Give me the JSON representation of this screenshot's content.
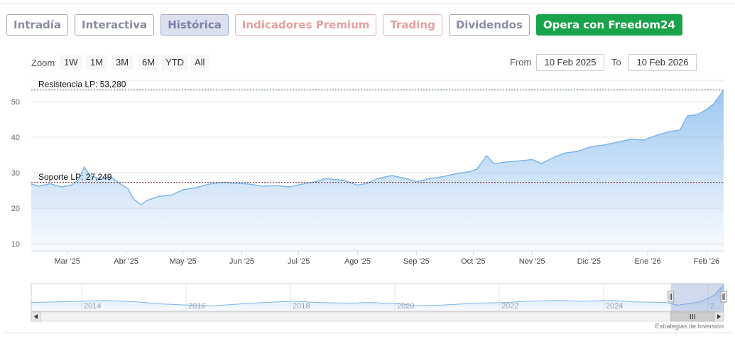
{
  "tabs": [
    {
      "label": "Intradía",
      "style": "grey"
    },
    {
      "label": "Interactiva",
      "style": "grey"
    },
    {
      "label": "Histórica",
      "style": "active"
    },
    {
      "label": "Indicadores Premium",
      "style": "red"
    },
    {
      "label": "Trading",
      "style": "red"
    },
    {
      "label": "Dividendos",
      "style": "grey"
    },
    {
      "label": "Opera con Freedom24",
      "style": "green"
    }
  ],
  "zoom": {
    "label": "Zoom",
    "buttons": [
      "1W",
      "1M",
      "3M",
      "6M",
      "YTD",
      "All"
    ]
  },
  "range": {
    "from_label": "From",
    "from_value": "10 Feb 2025",
    "to_label": "To",
    "to_value": "10 Feb 2026"
  },
  "credit": "Estrategias de Inversión",
  "colors": {
    "line": "#7cb5ec",
    "fill_top": "#7cb5ec",
    "resistance": "#2e5f2e",
    "support": "#6b1b1b",
    "green_button": "#19a34a"
  },
  "chart_data": {
    "type": "area",
    "title": "",
    "xlabel": "",
    "ylabel": "",
    "ylim": [
      8,
      56
    ],
    "yticks": [
      10,
      20,
      30,
      40,
      50
    ],
    "grid": true,
    "x_start": "2025-02-10",
    "x_end": "2026-02-10",
    "x_ticks": [
      {
        "label": "Mar '25",
        "date": "2025-03-01"
      },
      {
        "label": "Abr '25",
        "date": "2025-04-01"
      },
      {
        "label": "May '25",
        "date": "2025-05-01"
      },
      {
        "label": "Jun '25",
        "date": "2025-06-01"
      },
      {
        "label": "Jul '25",
        "date": "2025-07-01"
      },
      {
        "label": "Ago '25",
        "date": "2025-08-01"
      },
      {
        "label": "Sep '25",
        "date": "2025-09-01"
      },
      {
        "label": "Oct '25",
        "date": "2025-10-01"
      },
      {
        "label": "Nov '25",
        "date": "2025-11-01"
      },
      {
        "label": "Dic '25",
        "date": "2025-12-01"
      },
      {
        "label": "Ene '26",
        "date": "2026-01-01"
      },
      {
        "label": "Feb '26",
        "date": "2026-02-01"
      }
    ],
    "series": [
      {
        "points": [
          [
            "2025-02-10",
            26.8
          ],
          [
            "2025-02-14",
            26.2
          ],
          [
            "2025-02-20",
            26.9
          ],
          [
            "2025-02-26",
            26.0
          ],
          [
            "2025-03-03",
            26.5
          ],
          [
            "2025-03-07",
            28.0
          ],
          [
            "2025-03-10",
            31.6
          ],
          [
            "2025-03-13",
            29.2
          ],
          [
            "2025-03-18",
            28.3
          ],
          [
            "2025-03-24",
            28.8
          ],
          [
            "2025-03-28",
            27.2
          ],
          [
            "2025-04-02",
            25.5
          ],
          [
            "2025-04-05",
            22.5
          ],
          [
            "2025-04-09",
            21.0
          ],
          [
            "2025-04-12",
            22.2
          ],
          [
            "2025-04-18",
            23.3
          ],
          [
            "2025-04-25",
            23.7
          ],
          [
            "2025-05-01",
            25.2
          ],
          [
            "2025-05-08",
            25.8
          ],
          [
            "2025-05-15",
            26.8
          ],
          [
            "2025-05-22",
            27.3
          ],
          [
            "2025-05-29",
            27.0
          ],
          [
            "2025-06-05",
            26.8
          ],
          [
            "2025-06-12",
            26.2
          ],
          [
            "2025-06-19",
            26.4
          ],
          [
            "2025-06-26",
            26.0
          ],
          [
            "2025-07-03",
            26.8
          ],
          [
            "2025-07-10",
            27.5
          ],
          [
            "2025-07-15",
            28.3
          ],
          [
            "2025-07-20",
            28.1
          ],
          [
            "2025-07-25",
            27.8
          ],
          [
            "2025-08-01",
            26.5
          ],
          [
            "2025-08-06",
            27.0
          ],
          [
            "2025-08-12",
            28.4
          ],
          [
            "2025-08-19",
            29.2
          ],
          [
            "2025-08-26",
            28.4
          ],
          [
            "2025-09-01",
            27.5
          ],
          [
            "2025-09-08",
            28.3
          ],
          [
            "2025-09-15",
            28.9
          ],
          [
            "2025-09-22",
            29.7
          ],
          [
            "2025-09-29",
            30.3
          ],
          [
            "2025-10-03",
            31.0
          ],
          [
            "2025-10-08",
            34.8
          ],
          [
            "2025-10-12",
            32.5
          ],
          [
            "2025-10-18",
            33.0
          ],
          [
            "2025-10-25",
            33.3
          ],
          [
            "2025-11-01",
            33.7
          ],
          [
            "2025-11-06",
            32.6
          ],
          [
            "2025-11-12",
            34.2
          ],
          [
            "2025-11-18",
            35.5
          ],
          [
            "2025-11-25",
            36.0
          ],
          [
            "2025-12-02",
            37.3
          ],
          [
            "2025-12-09",
            37.8
          ],
          [
            "2025-12-16",
            38.6
          ],
          [
            "2025-12-23",
            39.4
          ],
          [
            "2025-12-30",
            39.2
          ],
          [
            "2026-01-05",
            40.4
          ],
          [
            "2026-01-12",
            41.5
          ],
          [
            "2026-01-18",
            42.0
          ],
          [
            "2026-01-22",
            46.0
          ],
          [
            "2026-01-27",
            46.3
          ],
          [
            "2026-02-01",
            47.8
          ],
          [
            "2026-02-05",
            49.5
          ],
          [
            "2026-02-08",
            51.8
          ],
          [
            "2026-02-10",
            53.3
          ]
        ]
      }
    ],
    "annotations": [
      {
        "label": "Resistencia LP: 53,280",
        "value": 53.28,
        "kind": "resistance"
      },
      {
        "label": "Soporte LP: 27,249",
        "value": 27.249,
        "kind": "support"
      }
    ],
    "navigator": {
      "year_labels": [
        "2014",
        "2016",
        "2018",
        "2020",
        "2022",
        "2024",
        "2..."
      ],
      "points": [
        [
          "2013-01-01",
          27
        ],
        [
          "2014-01-01",
          29
        ],
        [
          "2014-06-01",
          30
        ],
        [
          "2015-01-01",
          28
        ],
        [
          "2015-06-01",
          25
        ],
        [
          "2016-01-01",
          23
        ],
        [
          "2016-06-01",
          22
        ],
        [
          "2017-01-01",
          25
        ],
        [
          "2017-06-01",
          27
        ],
        [
          "2018-01-01",
          29
        ],
        [
          "2018-06-01",
          27
        ],
        [
          "2019-01-01",
          26
        ],
        [
          "2019-06-01",
          27
        ],
        [
          "2020-01-01",
          25
        ],
        [
          "2020-04-01",
          22
        ],
        [
          "2020-10-01",
          23
        ],
        [
          "2021-06-01",
          26
        ],
        [
          "2022-01-01",
          27
        ],
        [
          "2022-06-01",
          29
        ],
        [
          "2023-01-01",
          30
        ],
        [
          "2023-06-01",
          29
        ],
        [
          "2024-01-01",
          30
        ],
        [
          "2024-06-01",
          28
        ],
        [
          "2025-01-01",
          27
        ],
        [
          "2025-04-01",
          23
        ],
        [
          "2025-09-01",
          28
        ],
        [
          "2025-12-01",
          37
        ],
        [
          "2026-02-10",
          53
        ]
      ]
    }
  }
}
